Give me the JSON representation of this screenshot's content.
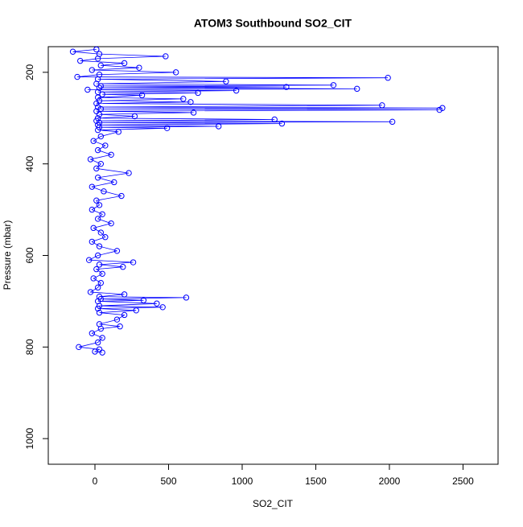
{
  "chart_data": {
    "type": "line",
    "title": "ATOM3 Southbound SO2_CIT",
    "x_label": "SO2_CIT",
    "y_label": "Pressure (mbar)",
    "color": "blue",
    "xlim": [
      -317,
      2738
    ],
    "ylim": [
      1056,
      144
    ],
    "xticks": [
      0,
      500,
      1000,
      1500,
      2000,
      2500
    ],
    "yticks": [
      200,
      400,
      600,
      800,
      1000
    ],
    "x": [
      10,
      -150,
      30,
      480,
      20,
      -100,
      200,
      40,
      300,
      -20,
      550,
      30,
      -120,
      1990,
      20,
      890,
      10,
      1620,
      40,
      1300,
      30,
      1780,
      -50,
      960,
      20,
      700,
      50,
      320,
      20,
      600,
      30,
      650,
      10,
      1950,
      20,
      2360,
      40,
      2340,
      10,
      670,
      30,
      270,
      20,
      1220,
      10,
      2020,
      30,
      1270,
      20,
      840,
      30,
      490,
      20,
      160,
      40,
      -10,
      70,
      20,
      110,
      -30,
      40,
      10,
      230,
      20,
      130,
      -20,
      60,
      180,
      10,
      30,
      -20,
      50,
      20,
      110,
      -10,
      40,
      70,
      -20,
      30,
      150,
      20,
      -40,
      260,
      30,
      190,
      10,
      50,
      -10,
      40,
      20,
      -30,
      200,
      30,
      620,
      40,
      330,
      20,
      420,
      30,
      460,
      20,
      280,
      30,
      200,
      150,
      30,
      170,
      40,
      -20,
      50,
      20,
      -110,
      30,
      0,
      50
    ],
    "y": [
      150,
      155,
      160,
      165,
      170,
      175,
      180,
      185,
      190,
      195,
      200,
      205,
      210,
      212,
      215,
      220,
      225,
      228,
      230,
      232,
      234,
      236,
      238,
      240,
      243,
      245,
      248,
      250,
      255,
      258,
      262,
      265,
      268,
      272,
      276,
      278,
      280,
      282,
      285,
      288,
      292,
      296,
      300,
      303,
      306,
      308,
      310,
      312,
      315,
      318,
      320,
      322,
      326,
      330,
      340,
      350,
      360,
      370,
      380,
      390,
      400,
      410,
      420,
      430,
      440,
      450,
      460,
      470,
      480,
      490,
      500,
      510,
      520,
      530,
      540,
      550,
      560,
      570,
      580,
      590,
      600,
      610,
      615,
      620,
      625,
      630,
      640,
      650,
      660,
      670,
      680,
      685,
      690,
      692,
      695,
      698,
      700,
      705,
      710,
      713,
      716,
      720,
      725,
      730,
      740,
      750,
      755,
      760,
      770,
      780,
      790,
      800,
      805,
      810,
      812
    ]
  }
}
